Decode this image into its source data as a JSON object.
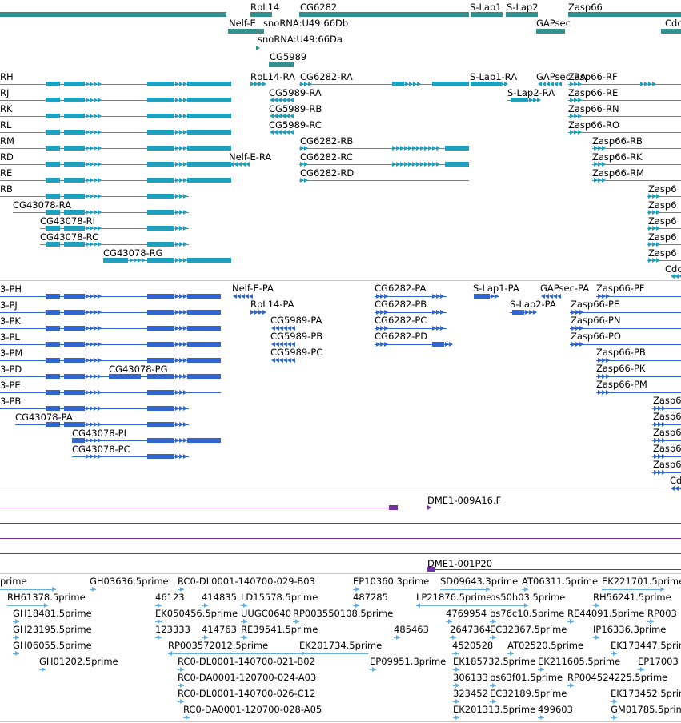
{
  "colors": {
    "gene": "#33908f",
    "transcript": "#1ea0c0",
    "protein": "#3366cc",
    "clone": "#7030a0",
    "est": "#6aaee0",
    "separator": "#c8c8c8"
  },
  "tracks": {
    "genes": {
      "name": "gene-track",
      "features": [
        {
          "name": "RpL14",
          "bars": [
            [
              313,
              340
            ]
          ]
        },
        {
          "name": "CG6282",
          "bars": [
            [
              374,
              586
            ]
          ]
        },
        {
          "name": "S-Lap1",
          "bars": [
            [
              588,
              628
            ]
          ]
        },
        {
          "name": "S-Lap2",
          "bars": [
            [
              632,
              672
            ]
          ]
        },
        {
          "name": "Zasp66",
          "bars": [
            [
              710,
              851
            ]
          ]
        },
        {
          "name": "gene-left",
          "bars": [
            [
              0,
              283
            ]
          ]
        },
        {
          "name": "Nelf-E",
          "bars": [
            [
              285,
              322
            ]
          ]
        },
        {
          "name": "snoRNA:U49:66Db",
          "bars": [
            [
              323,
              330
            ]
          ]
        },
        {
          "name": "GAPsec",
          "bars": [
            [
              670,
              706
            ]
          ]
        },
        {
          "name": "Cdc",
          "bars": [
            [
              826,
              851
            ]
          ]
        },
        {
          "name": "snoRNA:U49:66Da",
          "bars": [
            [
              320,
              325
            ]
          ]
        },
        {
          "name": "CG5989",
          "bars": [
            [
              336,
              367
            ]
          ]
        }
      ],
      "labels": [
        {
          "t": "RpL14"
        },
        {
          "t": "CG6282"
        },
        {
          "t": "S-Lap1"
        },
        {
          "t": "S-Lap2"
        },
        {
          "t": "Zasp66"
        },
        {
          "t": "Nelf-E"
        },
        {
          "t": "snoRNA:U49:66Db"
        },
        {
          "t": "GAPsec"
        },
        {
          "t": "Cdc"
        },
        {
          "t": "snoRNA:U49:66Da"
        },
        {
          "t": "CG5989"
        }
      ]
    },
    "transcripts": {
      "labels": [
        {
          "t": "RH"
        },
        {
          "t": "RpL14-RA"
        },
        {
          "t": "CG6282-RA"
        },
        {
          "t": "S-Lap1-RA"
        },
        {
          "t": "GAPsec-RA"
        },
        {
          "t": "Zasp66-RF"
        },
        {
          "t": "RJ"
        },
        {
          "t": "CG5989-RA"
        },
        {
          "t": "S-Lap2-RA"
        },
        {
          "t": "Zasp66-RE"
        },
        {
          "t": "RK"
        },
        {
          "t": "CG5989-RB"
        },
        {
          "t": "Zasp66-RN"
        },
        {
          "t": "RL"
        },
        {
          "t": "CG5989-RC"
        },
        {
          "t": "Zasp66-RO"
        },
        {
          "t": "RM"
        },
        {
          "t": "CG6282-RB"
        },
        {
          "t": "Zasp66-RB"
        },
        {
          "t": "RD"
        },
        {
          "t": "Nelf-E-RA"
        },
        {
          "t": "CG6282-RC"
        },
        {
          "t": "Zasp66-RK"
        },
        {
          "t": "RE"
        },
        {
          "t": "CG6282-RD"
        },
        {
          "t": "Zasp66-RM"
        },
        {
          "t": "RB"
        },
        {
          "t": "Zasp6"
        },
        {
          "t": "CG43078-RA"
        },
        {
          "t": "Zasp6"
        },
        {
          "t": "CG43078-RI"
        },
        {
          "t": "Zasp6"
        },
        {
          "t": "CG43078-RC"
        },
        {
          "t": "Zasp6"
        },
        {
          "t": "Zasp6"
        },
        {
          "t": "CG43078-RG"
        },
        {
          "t": "Cdc"
        }
      ]
    },
    "proteins": {
      "labels": [
        {
          "t": "3-PH"
        },
        {
          "t": "Nelf-E-PA"
        },
        {
          "t": "CG6282-PA"
        },
        {
          "t": "S-Lap1-PA"
        },
        {
          "t": "GAPsec-PA"
        },
        {
          "t": "Zasp66-PF"
        },
        {
          "t": "3-PJ"
        },
        {
          "t": "RpL14-PA"
        },
        {
          "t": "CG6282-PB"
        },
        {
          "t": "S-Lap2-PA"
        },
        {
          "t": "Zasp66-PE"
        },
        {
          "t": "3-PK"
        },
        {
          "t": "CG5989-PA"
        },
        {
          "t": "CG6282-PC"
        },
        {
          "t": "Zasp66-PN"
        },
        {
          "t": "3-PL"
        },
        {
          "t": "CG5989-PB"
        },
        {
          "t": "CG6282-PD"
        },
        {
          "t": "Zasp66-PO"
        },
        {
          "t": "3-PM"
        },
        {
          "t": "CG5989-PC"
        },
        {
          "t": "Zasp66-PB"
        },
        {
          "t": "3-PD"
        },
        {
          "t": "CG43078-PG"
        },
        {
          "t": "Zasp66-PK"
        },
        {
          "t": "3-PE"
        },
        {
          "t": "Zasp66-PM"
        },
        {
          "t": "3-PB"
        },
        {
          "t": "Zasp6"
        },
        {
          "t": "CG43078-PA"
        },
        {
          "t": "Zasp6"
        },
        {
          "t": "CG43078-PI"
        },
        {
          "t": "Zasp6"
        },
        {
          "t": "CG43078-PC"
        },
        {
          "t": "Zasp6"
        },
        {
          "t": "Zasp6"
        },
        {
          "t": "Cdc"
        }
      ]
    },
    "clones": {
      "labels": [
        {
          "t": "DME1-009A16.F"
        },
        {
          "t": "DME1-001P20"
        }
      ]
    },
    "ests": {
      "labels": [
        {
          "t": "prime"
        },
        {
          "t": "GH03636.5prime"
        },
        {
          "t": "RC0-DL0001-140700-029-B03"
        },
        {
          "t": "EP10360.3prime"
        },
        {
          "t": "SD09643.3prime"
        },
        {
          "t": "AT06311.5prime"
        },
        {
          "t": "EK221701.5prime"
        },
        {
          "t": "RH61378.5prime"
        },
        {
          "t": "46123"
        },
        {
          "t": "414835"
        },
        {
          "t": "LD15578.5prime"
        },
        {
          "t": "487285"
        },
        {
          "t": "LP21876.5prime"
        },
        {
          "t": "bs50h03.5prime"
        },
        {
          "t": "RH56241.5prime"
        },
        {
          "t": "GH18481.5prime"
        },
        {
          "t": "EK050456.5prime"
        },
        {
          "t": "UUGC0640"
        },
        {
          "t": "RP003550108.5prime"
        },
        {
          "t": "4769954"
        },
        {
          "t": "bs76c10.5prime"
        },
        {
          "t": "RE44091.5prime"
        },
        {
          "t": "RP003"
        },
        {
          "t": "GH23195.5prime"
        },
        {
          "t": "123333"
        },
        {
          "t": "414763"
        },
        {
          "t": "RE39541.5prime"
        },
        {
          "t": "485463"
        },
        {
          "t": "2647364"
        },
        {
          "t": "EC32367.5prime"
        },
        {
          "t": "IP16336.3prime"
        },
        {
          "t": "GH06055.5prime"
        },
        {
          "t": "RP003572012.5prime"
        },
        {
          "t": "EK201734.5prime"
        },
        {
          "t": "4520528"
        },
        {
          "t": "AT02520.5prime"
        },
        {
          "t": "EK173447.5prime"
        },
        {
          "t": "GH01202.5prime"
        },
        {
          "t": "RC0-DL0001-140700-021-B02"
        },
        {
          "t": "EP09951.3prime"
        },
        {
          "t": "EK185732.5prime"
        },
        {
          "t": "EK211605.5prime"
        },
        {
          "t": "EP17003"
        },
        {
          "t": "RC0-DA0001-120700-024-A03"
        },
        {
          "t": "306133"
        },
        {
          "t": "bs63f01.5prime"
        },
        {
          "t": "RP004524225.5prime"
        },
        {
          "t": "RC0-DL0001-140700-026-C12"
        },
        {
          "t": "323452"
        },
        {
          "t": "EC32189.5prime"
        },
        {
          "t": "EK173452.5prime"
        },
        {
          "t": "RC0-DA0001-120700-028-A05"
        },
        {
          "t": "EK201313.5prime"
        },
        {
          "t": "499603"
        },
        {
          "t": "GM01785.5prime"
        }
      ]
    }
  }
}
